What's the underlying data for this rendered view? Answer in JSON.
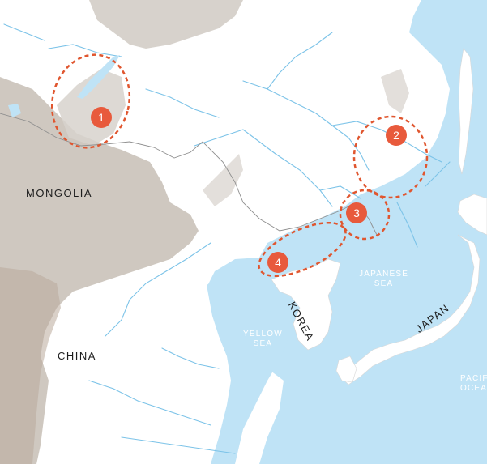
{
  "map": {
    "colors": {
      "sea": "#bfe3f6",
      "land": "#ffffff",
      "highland": "#cfc8c0",
      "river": "#7cc3e8",
      "border": "#8f8f8f",
      "marker": "#e85a3c",
      "circle_outline": "#e0562f",
      "country_label": "#1d1d1d",
      "sea_label": "#ffffff"
    },
    "countries": {
      "mongolia": "MONGOLIA",
      "china": "CHINA",
      "korea": "KOREA",
      "japan": "JAPAN"
    },
    "seas": {
      "japanese_sea_line1": "JAPANESE",
      "japanese_sea_line2": "SEA",
      "yellow_sea_line1": "YELLOW",
      "yellow_sea_line2": "SEA",
      "pacific_line1": "PACIFIC",
      "pacific_line2": "OCEAN"
    },
    "markers": [
      {
        "label": "1"
      },
      {
        "label": "2"
      },
      {
        "label": "3"
      },
      {
        "label": "4"
      }
    ]
  }
}
